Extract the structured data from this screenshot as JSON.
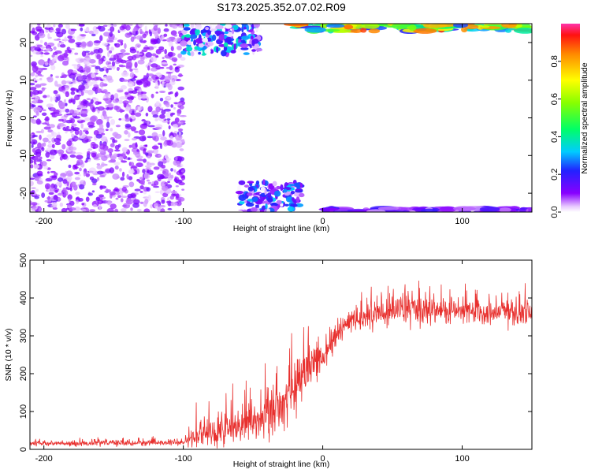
{
  "title": "S173.2025.352.07.02.R09",
  "chart_data": [
    {
      "type": "heatmap",
      "title": "S173.2025.352.07.02.R09",
      "xlabel": "Height of straight line (km)",
      "ylabel": "Frequency (Hz)",
      "xlim": [
        -210,
        150
      ],
      "ylim": [
        -25,
        25
      ],
      "xticks": [
        -200,
        -100,
        0,
        100
      ],
      "xtick_labels": [
        "-200",
        "-100",
        "0",
        "100"
      ],
      "yticks": [
        -20,
        -10,
        0,
        10,
        20
      ],
      "ytick_labels": [
        "-20",
        "-10",
        "0",
        "10",
        "20"
      ],
      "colorbar": {
        "label": "Normalized spectral amplitude",
        "range": [
          0,
          1
        ],
        "ticks": [
          0.0,
          0.2,
          0.4,
          0.6,
          0.8
        ],
        "tick_labels": [
          "0.0",
          "0.2",
          "0.4",
          "0.6",
          "0.8"
        ]
      },
      "features": [
        {
          "name": "scattered noise",
          "x_range": [
            -210,
            -100
          ],
          "f_range": [
            -25,
            25
          ],
          "amplitude": 0.12
        },
        {
          "name": "upper cluster",
          "x_range": [
            -100,
            -45
          ],
          "f_range": [
            17,
            25
          ],
          "amplitude": 0.35
        },
        {
          "name": "lower cluster",
          "x_range": [
            -60,
            -15
          ],
          "f_range": [
            -25,
            -17
          ],
          "amplitude": 0.3
        },
        {
          "name": "top edge band",
          "x_range": [
            -20,
            150
          ],
          "f_range": [
            23,
            25
          ],
          "amplitude": 0.95
        },
        {
          "name": "bottom edge band",
          "x_range": [
            0,
            150
          ],
          "f_range": [
            -25,
            -24
          ],
          "amplitude": 0.2
        }
      ]
    },
    {
      "type": "line",
      "xlabel": "Height of straight line (km)",
      "ylabel": "SNR (10 * v/v)",
      "xlim": [
        -210,
        150
      ],
      "ylim": [
        0,
        500
      ],
      "xticks": [
        -200,
        -100,
        0,
        100
      ],
      "xtick_labels": [
        "-200",
        "-100",
        "0",
        "100"
      ],
      "yticks": [
        0,
        100,
        200,
        300,
        400,
        500
      ],
      "ytick_labels": [
        "0",
        "100",
        "200",
        "300",
        "400",
        "500"
      ],
      "series": [
        {
          "name": "SNR",
          "color": "#e8302e",
          "trend_x": [
            -210,
            -100,
            -92,
            -80,
            -60,
            -45,
            -30,
            -20,
            -10,
            0,
            10,
            20,
            35,
            60,
            100,
            150
          ],
          "trend_y": [
            15,
            18,
            30,
            45,
            60,
            80,
            110,
            160,
            215,
            240,
            300,
            340,
            355,
            370,
            365,
            360
          ],
          "noise_amplitude": [
            8,
            8,
            35,
            45,
            55,
            65,
            75,
            85,
            60,
            45,
            40,
            35,
            40,
            45,
            40,
            35
          ]
        }
      ]
    }
  ]
}
